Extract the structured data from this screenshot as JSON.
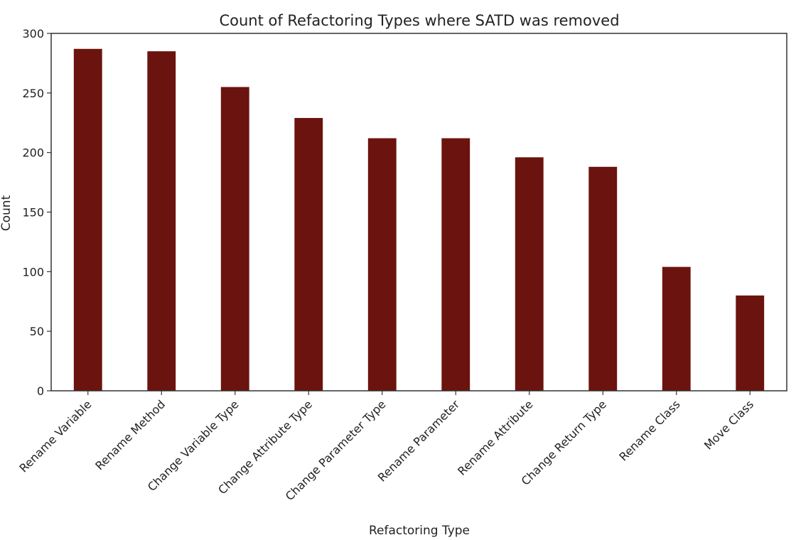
{
  "chart_data": {
    "type": "bar",
    "title": "Count of Refactoring Types where SATD was removed",
    "xlabel": "Refactoring Type",
    "ylabel": "Count",
    "categories": [
      "Rename Variable",
      "Rename Method",
      "Change Variable Type",
      "Change Attribute Type",
      "Change Parameter Type",
      "Rename Parameter",
      "Rename Attribute",
      "Change Return Type",
      "Rename Class",
      "Move Class"
    ],
    "values": [
      287,
      285,
      255,
      229,
      212,
      212,
      196,
      188,
      104,
      80
    ],
    "ylim": [
      0,
      300
    ],
    "yticks": [
      0,
      50,
      100,
      150,
      200,
      250,
      300
    ],
    "grid": false,
    "legend": "none",
    "bar_color": "#6b130e",
    "axis_color": "#333333"
  }
}
